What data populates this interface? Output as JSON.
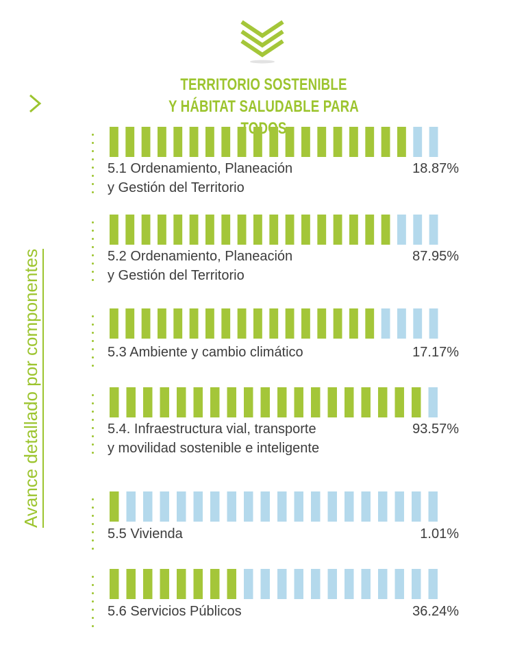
{
  "header": {
    "title_line1": "TERRITORIO SOSTENIBLE",
    "title_line2": "Y HÁBITAT SALUDABLE PARA TODOS"
  },
  "side_label": "Avance detallado por  componentes",
  "colors": {
    "green": "#a4c639",
    "blue": "#b4d9ec",
    "title": "#9cc42e",
    "text": "#3c3c3c"
  },
  "chart_data": {
    "type": "bar",
    "categories": [
      "5.1 Ordenamiento, Planeación y Gestión del Territorio",
      "5.2 Ordenamiento, Planeación y Gestión del Territorio",
      "5.3 Ambiente y cambio climático",
      "5.4. Infraestructura vial, transporte y movilidad sostenible e inteligente",
      "5.5 Vivienda",
      "5.6 Servicios Públicos"
    ],
    "values": [
      18.87,
      87.95,
      17.17,
      93.57,
      1.01,
      36.24
    ],
    "rows": [
      {
        "line1": "5.1 Ordenamiento, Planeación",
        "line2": "y Gestión del Territorio",
        "value_label": "18.87%",
        "segments_total": 21,
        "segments_filled": 19
      },
      {
        "line1": "5.2 Ordenamiento, Planeación",
        "line2": "y Gestión del Territorio",
        "value_label": "87.95%",
        "segments_total": 21,
        "segments_filled": 18
      },
      {
        "line1": "5.3 Ambiente y cambio climático",
        "line2": "",
        "value_label": "17.17%",
        "segments_total": 21,
        "segments_filled": 17
      },
      {
        "line1": "5.4. Infraestructura vial, transporte",
        "line2": "y movilidad sostenible e inteligente",
        "value_label": "93.57%",
        "segments_total": 20,
        "segments_filled": 19
      },
      {
        "line1": "5.5 Vivienda",
        "line2": "",
        "value_label": "1.01%",
        "segments_total": 20,
        "segments_filled": 1
      },
      {
        "line1": "5.6 Servicios Públicos",
        "line2": "",
        "value_label": "36.24%",
        "segments_total": 20,
        "segments_filled": 8
      }
    ]
  }
}
